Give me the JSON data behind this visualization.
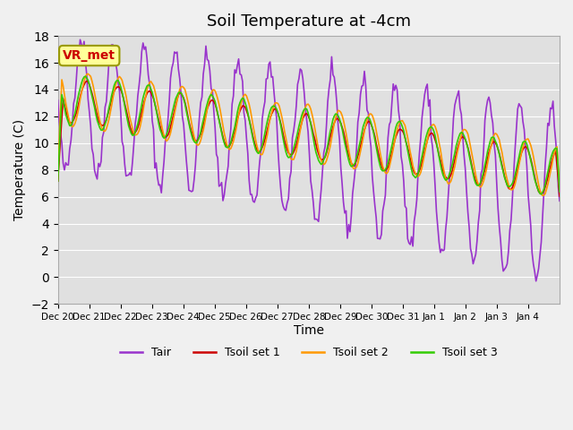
{
  "title": "Soil Temperature at -4cm",
  "xlabel": "Time",
  "ylabel": "Temperature (C)",
  "ylim": [
    -2,
    18
  ],
  "yticks": [
    -2,
    0,
    2,
    4,
    6,
    8,
    10,
    12,
    14,
    16,
    18
  ],
  "xtick_labels": [
    "Dec 20",
    "Dec 21",
    "Dec 22",
    "Dec 23",
    "Dec 24",
    "Dec 25",
    "Dec 26",
    "Dec 27",
    "Dec 28",
    "Dec 29",
    "Dec 30",
    "Dec 31",
    "Jan 1",
    "Jan 2",
    "Jan 3",
    "Jan 4"
  ],
  "legend_labels": [
    "Tair",
    "Tsoil set 1",
    "Tsoil set 2",
    "Tsoil set 3"
  ],
  "colors": {
    "Tair": "#9933cc",
    "Tsoil_set1": "#cc0000",
    "Tsoil_set2": "#ff9900",
    "Tsoil_set3": "#33cc00"
  },
  "annotation_text": "VR_met",
  "annotation_color": "#cc0000",
  "annotation_bg": "#ffff99",
  "fig_bg": "#f0f0f0",
  "ax_bg": "#e0e0e0",
  "linewidth": 1.2,
  "title_fontsize": 13,
  "axis_fontsize": 10,
  "legend_fontsize": 9
}
